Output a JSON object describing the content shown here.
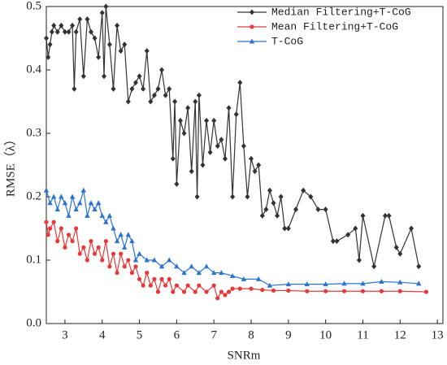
{
  "chart_data": {
    "type": "line",
    "xlabel": "SNRm",
    "ylabel": "RMSE（λ）",
    "xlim": [
      2.5,
      13.15
    ],
    "ylim": [
      0,
      0.5
    ],
    "xticks": [
      3,
      4,
      5,
      6,
      7,
      8,
      9,
      10,
      11,
      12,
      13
    ],
    "yticks": [
      {
        "value": 0,
        "label": "0.0"
      },
      0.1,
      0.2,
      0.3,
      0.4,
      0.5
    ],
    "legend": "upper right",
    "series": [
      {
        "name": "Median Filtering+T-CoG",
        "color": "#333333",
        "marker": "diamond",
        "x": [
          2.5,
          2.55,
          2.6,
          2.65,
          2.7,
          2.8,
          2.9,
          3.0,
          3.1,
          3.2,
          3.25,
          3.3,
          3.4,
          3.5,
          3.6,
          3.7,
          3.8,
          3.9,
          4.0,
          4.05,
          4.1,
          4.2,
          4.3,
          4.4,
          4.5,
          4.6,
          4.7,
          4.8,
          4.9,
          5.0,
          5.1,
          5.2,
          5.3,
          5.4,
          5.5,
          5.6,
          5.7,
          5.8,
          5.9,
          5.95,
          6.0,
          6.1,
          6.2,
          6.3,
          6.4,
          6.5,
          6.55,
          6.6,
          6.7,
          6.8,
          6.9,
          7.0,
          7.1,
          7.2,
          7.3,
          7.4,
          7.5,
          7.6,
          7.7,
          7.8,
          7.9,
          8.0,
          8.1,
          8.2,
          8.3,
          8.4,
          8.5,
          8.6,
          8.7,
          8.8,
          8.9,
          9.0,
          9.2,
          9.4,
          9.6,
          9.8,
          10.0,
          10.2,
          10.3,
          10.6,
          10.8,
          10.9,
          11.0,
          11.3,
          11.6,
          11.7,
          11.9,
          12.0,
          12.3,
          12.5
        ],
        "values": [
          0.45,
          0.42,
          0.44,
          0.46,
          0.47,
          0.46,
          0.47,
          0.46,
          0.46,
          0.47,
          0.37,
          0.46,
          0.48,
          0.39,
          0.48,
          0.46,
          0.45,
          0.42,
          0.49,
          0.39,
          0.5,
          0.44,
          0.37,
          0.47,
          0.43,
          0.44,
          0.35,
          0.37,
          0.38,
          0.39,
          0.37,
          0.43,
          0.35,
          0.36,
          0.37,
          0.4,
          0.36,
          0.37,
          0.26,
          0.35,
          0.22,
          0.32,
          0.3,
          0.34,
          0.24,
          0.35,
          0.2,
          0.36,
          0.25,
          0.32,
          0.27,
          0.32,
          0.28,
          0.29,
          0.26,
          0.34,
          0.2,
          0.33,
          0.38,
          0.28,
          0.2,
          0.26,
          0.24,
          0.25,
          0.17,
          0.18,
          0.21,
          0.19,
          0.17,
          0.2,
          0.15,
          0.15,
          0.18,
          0.21,
          0.2,
          0.18,
          0.18,
          0.13,
          0.13,
          0.14,
          0.15,
          0.1,
          0.17,
          0.09,
          0.17,
          0.17,
          0.12,
          0.11,
          0.15,
          0.09
        ]
      },
      {
        "name": "Mean Filtering+T-CoG",
        "color": "#e8393a",
        "marker": "circle",
        "x": [
          2.5,
          2.55,
          2.6,
          2.7,
          2.8,
          2.9,
          3.0,
          3.1,
          3.2,
          3.3,
          3.4,
          3.5,
          3.6,
          3.7,
          3.8,
          3.9,
          4.0,
          4.1,
          4.2,
          4.3,
          4.4,
          4.5,
          4.6,
          4.7,
          4.8,
          4.9,
          5.0,
          5.1,
          5.2,
          5.3,
          5.4,
          5.5,
          5.6,
          5.7,
          5.8,
          5.9,
          6.0,
          6.2,
          6.3,
          6.5,
          6.6,
          6.8,
          7.0,
          7.1,
          7.2,
          7.3,
          7.4,
          7.5,
          7.7,
          8.0,
          8.3,
          8.6,
          9.0,
          9.5,
          10.0,
          10.5,
          11.0,
          11.5,
          12.0,
          12.7
        ],
        "values": [
          0.16,
          0.14,
          0.15,
          0.16,
          0.13,
          0.15,
          0.12,
          0.14,
          0.13,
          0.15,
          0.11,
          0.12,
          0.1,
          0.13,
          0.11,
          0.12,
          0.1,
          0.13,
          0.09,
          0.11,
          0.08,
          0.11,
          0.09,
          0.1,
          0.08,
          0.09,
          0.07,
          0.06,
          0.08,
          0.06,
          0.07,
          0.05,
          0.07,
          0.06,
          0.07,
          0.05,
          0.06,
          0.05,
          0.06,
          0.05,
          0.06,
          0.05,
          0.06,
          0.04,
          0.05,
          0.045,
          0.05,
          0.055,
          0.055,
          0.055,
          0.053,
          0.052,
          0.052,
          0.051,
          0.051,
          0.051,
          0.051,
          0.051,
          0.051,
          0.05
        ]
      },
      {
        "name": "T-CoG",
        "color": "#2b73cf",
        "marker": "triangle",
        "x": [
          2.5,
          2.6,
          2.7,
          2.8,
          2.9,
          3.0,
          3.1,
          3.2,
          3.3,
          3.4,
          3.5,
          3.6,
          3.7,
          3.8,
          3.9,
          4.0,
          4.1,
          4.2,
          4.3,
          4.4,
          4.5,
          4.6,
          4.7,
          4.8,
          4.9,
          5.0,
          5.2,
          5.4,
          5.6,
          5.8,
          6.0,
          6.2,
          6.4,
          6.6,
          6.8,
          7.0,
          7.2,
          7.5,
          7.8,
          8.2,
          8.5,
          9.0,
          9.5,
          10.0,
          10.5,
          11.0,
          11.5,
          12.0,
          12.5
        ],
        "values": [
          0.21,
          0.19,
          0.2,
          0.18,
          0.2,
          0.19,
          0.17,
          0.2,
          0.18,
          0.19,
          0.21,
          0.17,
          0.19,
          0.18,
          0.19,
          0.17,
          0.16,
          0.17,
          0.15,
          0.13,
          0.14,
          0.12,
          0.14,
          0.13,
          0.1,
          0.11,
          0.1,
          0.1,
          0.09,
          0.1,
          0.09,
          0.08,
          0.09,
          0.08,
          0.09,
          0.08,
          0.08,
          0.075,
          0.07,
          0.07,
          0.06,
          0.062,
          0.062,
          0.062,
          0.063,
          0.063,
          0.066,
          0.065,
          0.063
        ]
      }
    ]
  }
}
